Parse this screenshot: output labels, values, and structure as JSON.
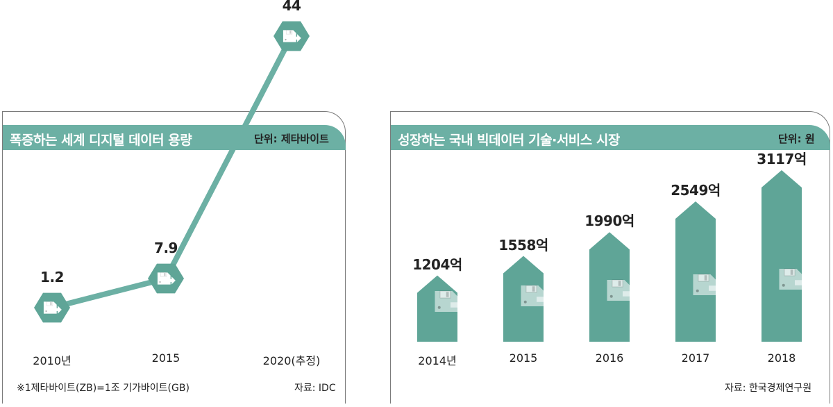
{
  "chart_data": [
    {
      "type": "line",
      "title": "폭증하는 세계 디지털 데이터 용량",
      "unit": "단위: 제타바이트",
      "categories": [
        "2010년",
        "2015",
        "2020(추정)"
      ],
      "values": [
        1.2,
        7.9,
        44
      ],
      "value_labels": [
        "1.2",
        "7.9",
        "44"
      ],
      "note": "※1제타바이트(ZB)=1조 기가바이트(GB)",
      "source": "자료: IDC",
      "colors": {
        "line": "#6cb0a4",
        "marker": "#5fa597",
        "header": "#6cb0a4"
      },
      "icon": "floppy-disk-export-icon"
    },
    {
      "type": "bar",
      "title": "성장하는 국내 빅데이터 기술·서비스 시장",
      "unit": "단위: 원",
      "categories": [
        "2014년",
        "2015",
        "2016",
        "2017",
        "2018"
      ],
      "values": [
        1204,
        1558,
        1990,
        2549,
        3117
      ],
      "value_labels": [
        "1204억",
        "1558억",
        "1990억",
        "2549억",
        "3117억"
      ],
      "source": "자료: 한국경제연구원",
      "colors": {
        "bar": "#5fa597",
        "header": "#6cb0a4"
      },
      "icon": "floppy-disk-export-icon"
    }
  ]
}
